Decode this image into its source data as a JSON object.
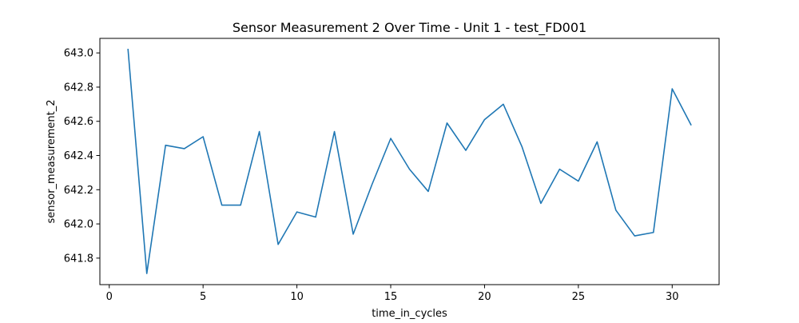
{
  "chart_data": {
    "type": "line",
    "title": "Sensor Measurement 2 Over Time - Unit 1 - test_FD001",
    "xlabel": "time_in_cycles",
    "ylabel": "sensor_measurement_2",
    "xlim": [
      -0.5,
      32.5
    ],
    "ylim": [
      641.645,
      643.085
    ],
    "xticks": [
      0,
      5,
      10,
      15,
      20,
      25,
      30
    ],
    "yticks": [
      641.8,
      642.0,
      642.2,
      642.4,
      642.6,
      642.8,
      643.0
    ],
    "ytick_labels": [
      "641.8",
      "642.0",
      "642.2",
      "642.4",
      "642.6",
      "642.8",
      "643.0"
    ],
    "grid": false,
    "legend": "none",
    "line_color": "#1f77b4",
    "x": [
      1,
      2,
      3,
      4,
      5,
      6,
      7,
      8,
      9,
      10,
      11,
      12,
      13,
      14,
      15,
      16,
      17,
      18,
      19,
      20,
      21,
      22,
      23,
      24,
      25,
      26,
      27,
      28,
      29,
      30,
      31
    ],
    "series": [
      {
        "values": [
          643.02,
          641.71,
          642.46,
          642.44,
          642.51,
          642.11,
          642.11,
          642.54,
          641.88,
          642.07,
          642.04,
          642.54,
          641.94,
          642.23,
          642.5,
          642.32,
          642.19,
          642.59,
          642.43,
          642.61,
          642.7,
          642.45,
          642.12,
          642.32,
          642.25,
          642.48,
          642.08,
          641.93,
          641.95,
          642.79,
          642.58
        ]
      }
    ]
  }
}
